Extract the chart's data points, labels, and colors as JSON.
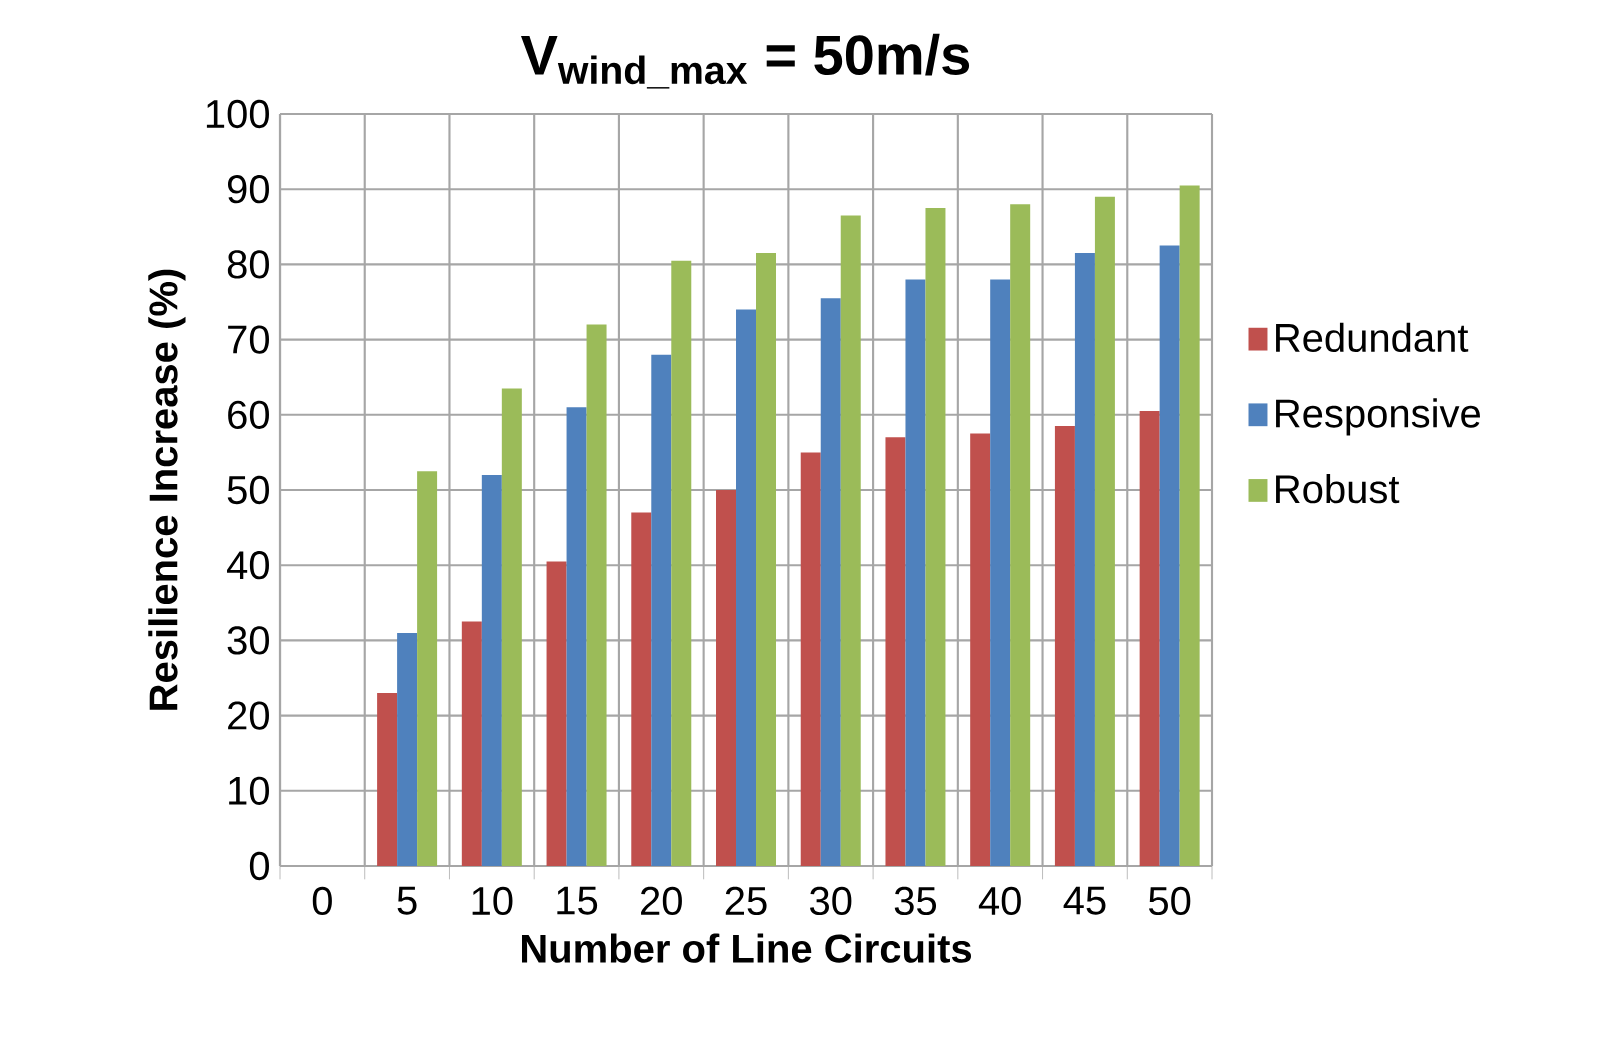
{
  "chart_data": {
    "type": "bar",
    "title": "V$_{wind_max}$ = 50m/s",
    "xlabel": "Number of Line Circuits",
    "ylabel": "Resilience Increase (%)",
    "categories": [
      "0",
      "5",
      "10",
      "15",
      "20",
      "25",
      "30",
      "35",
      "40",
      "45",
      "50"
    ],
    "series": [
      {
        "name": "Redundant",
        "color": "#c0504d",
        "values": [
          null,
          23,
          32.5,
          40.5,
          47,
          50,
          55,
          57,
          57.5,
          58.5,
          60.5
        ]
      },
      {
        "name": "Responsive",
        "color": "#4f81bd",
        "values": [
          null,
          31,
          52,
          61,
          68,
          74,
          75.5,
          78,
          78,
          81.5,
          82.5
        ]
      },
      {
        "name": "Robust",
        "color": "#9bbb59",
        "values": [
          null,
          52.5,
          63.5,
          72,
          80.5,
          81.5,
          86.5,
          87.5,
          88,
          89,
          90.5
        ]
      }
    ],
    "ylim": [
      0,
      100
    ],
    "yticks": [
      0,
      10,
      20,
      30,
      40,
      50,
      60,
      70,
      80,
      90,
      100
    ],
    "grid": true,
    "legend": "right"
  }
}
